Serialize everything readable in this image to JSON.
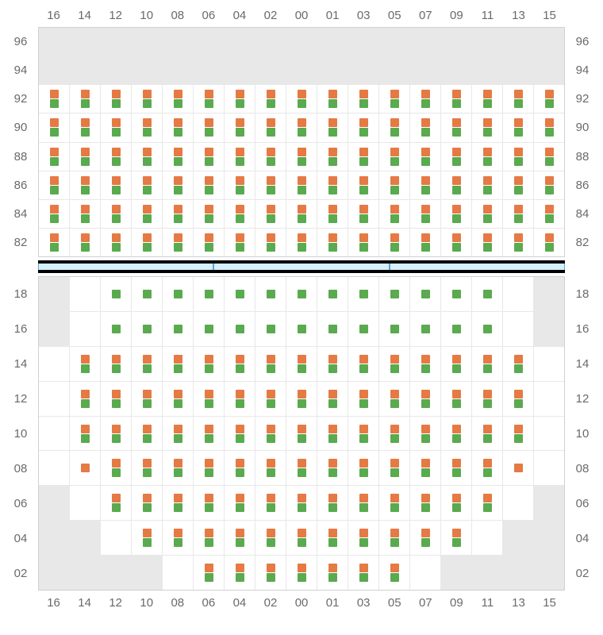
{
  "colors": {
    "orange": "#e57a44",
    "green": "#5aaa4f",
    "inactive_bg": "#e8e8e8",
    "grid_border": "#d0d0d0",
    "cell_border": "#e8e8e8",
    "label_text": "#6a6a6a",
    "sep_bg": "#d4f0ff",
    "sep_border": "#5aa8d6",
    "sep_bar": "#000000",
    "page_bg": "#ffffff"
  },
  "columns": [
    "16",
    "14",
    "12",
    "10",
    "08",
    "06",
    "04",
    "02",
    "00",
    "01",
    "03",
    "05",
    "07",
    "09",
    "11",
    "13",
    "15"
  ],
  "upper": {
    "row_labels": [
      "96",
      "94",
      "92",
      "90",
      "88",
      "86",
      "84",
      "82"
    ],
    "rows": [
      [
        "I",
        "I",
        "I",
        "I",
        "I",
        "I",
        "I",
        "I",
        "I",
        "I",
        "I",
        "I",
        "I",
        "I",
        "I",
        "I",
        "I"
      ],
      [
        "I",
        "I",
        "I",
        "I",
        "I",
        "I",
        "I",
        "I",
        "I",
        "I",
        "I",
        "I",
        "I",
        "I",
        "I",
        "I",
        "I"
      ],
      [
        "OG",
        "OG",
        "OG",
        "OG",
        "OG",
        "OG",
        "OG",
        "OG",
        "OG",
        "OG",
        "OG",
        "OG",
        "OG",
        "OG",
        "OG",
        "OG",
        "OG"
      ],
      [
        "OG",
        "OG",
        "OG",
        "OG",
        "OG",
        "OG",
        "OG",
        "OG",
        "OG",
        "OG",
        "OG",
        "OG",
        "OG",
        "OG",
        "OG",
        "OG",
        "OG"
      ],
      [
        "OG",
        "OG",
        "OG",
        "OG",
        "OG",
        "OG",
        "OG",
        "OG",
        "OG",
        "OG",
        "OG",
        "OG",
        "OG",
        "OG",
        "OG",
        "OG",
        "OG"
      ],
      [
        "OG",
        "OG",
        "OG",
        "OG",
        "OG",
        "OG",
        "OG",
        "OG",
        "OG",
        "OG",
        "OG",
        "OG",
        "OG",
        "OG",
        "OG",
        "OG",
        "OG"
      ],
      [
        "OG",
        "OG",
        "OG",
        "OG",
        "OG",
        "OG",
        "OG",
        "OG",
        "OG",
        "OG",
        "OG",
        "OG",
        "OG",
        "OG",
        "OG",
        "OG",
        "OG"
      ],
      [
        "OG",
        "OG",
        "OG",
        "OG",
        "OG",
        "OG",
        "OG",
        "OG",
        "OG",
        "OG",
        "OG",
        "OG",
        "OG",
        "OG",
        "OG",
        "OG",
        "OG"
      ]
    ]
  },
  "separator_segments": 3,
  "lower": {
    "row_labels": [
      "18",
      "16",
      "14",
      "12",
      "10",
      "08",
      "06",
      "04",
      "02"
    ],
    "rows": [
      [
        "I",
        "E",
        "G",
        "G",
        "G",
        "G",
        "G",
        "G",
        "G",
        "G",
        "G",
        "G",
        "G",
        "G",
        "G",
        "E",
        "I"
      ],
      [
        "I",
        "E",
        "G",
        "G",
        "G",
        "G",
        "G",
        "G",
        "G",
        "G",
        "G",
        "G",
        "G",
        "G",
        "G",
        "E",
        "I"
      ],
      [
        "E",
        "OG",
        "OG",
        "OG",
        "OG",
        "OG",
        "OG",
        "OG",
        "OG",
        "OG",
        "OG",
        "OG",
        "OG",
        "OG",
        "OG",
        "OG",
        "E"
      ],
      [
        "E",
        "OG",
        "OG",
        "OG",
        "OG",
        "OG",
        "OG",
        "OG",
        "OG",
        "OG",
        "OG",
        "OG",
        "OG",
        "OG",
        "OG",
        "OG",
        "E"
      ],
      [
        "E",
        "OG",
        "OG",
        "OG",
        "OG",
        "OG",
        "OG",
        "OG",
        "OG",
        "OG",
        "OG",
        "OG",
        "OG",
        "OG",
        "OG",
        "OG",
        "E"
      ],
      [
        "E",
        "O",
        "OG",
        "OG",
        "OG",
        "OG",
        "OG",
        "OG",
        "OG",
        "OG",
        "OG",
        "OG",
        "OG",
        "OG",
        "OG",
        "O",
        "E"
      ],
      [
        "I",
        "E",
        "OG",
        "OG",
        "OG",
        "OG",
        "OG",
        "OG",
        "OG",
        "OG",
        "OG",
        "OG",
        "OG",
        "OG",
        "OG",
        "E",
        "I"
      ],
      [
        "I",
        "I",
        "E",
        "OG",
        "OG",
        "OG",
        "OG",
        "OG",
        "OG",
        "OG",
        "OG",
        "OG",
        "OG",
        "OG",
        "E",
        "I",
        "I"
      ],
      [
        "I",
        "I",
        "I",
        "I",
        "E",
        "OG",
        "OG",
        "OG",
        "OG",
        "OG",
        "OG",
        "OG",
        "E",
        "I",
        "I",
        "I",
        "I"
      ]
    ]
  }
}
